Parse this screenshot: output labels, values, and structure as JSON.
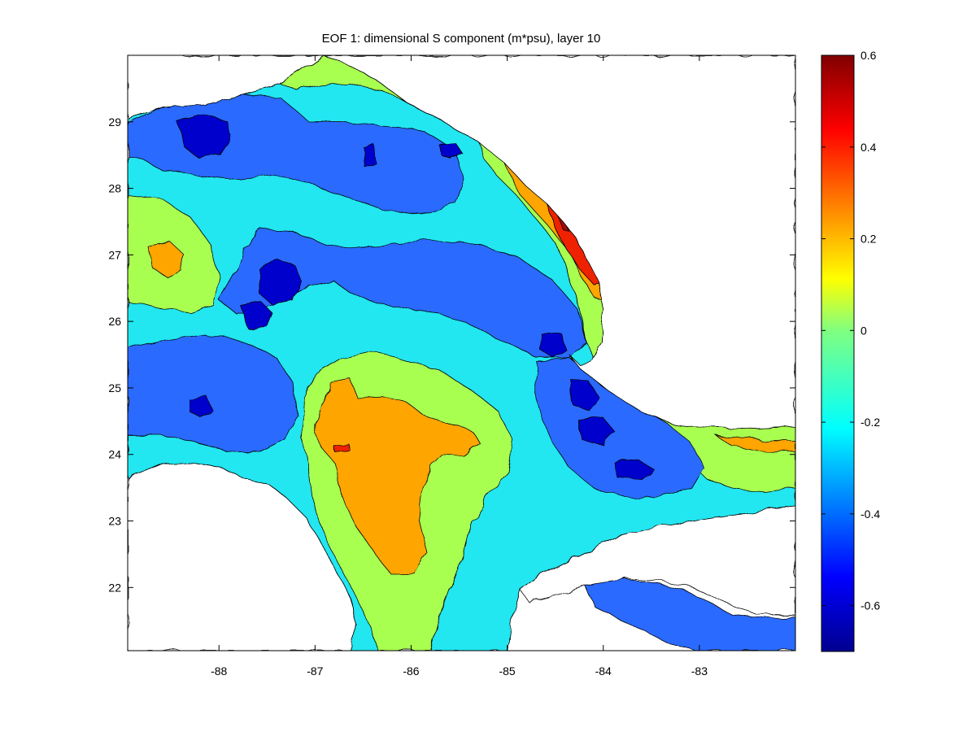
{
  "chart_data": {
    "type": "heatmap",
    "title": "EOF 1: dimensional S component (m*psu), layer 10",
    "xlabel": "",
    "ylabel": "",
    "x_ticks": [
      -88,
      -87,
      -86,
      -85,
      -84,
      -83
    ],
    "y_ticks": [
      22,
      23,
      24,
      25,
      26,
      27,
      28,
      29
    ],
    "xlim": [
      -88.95,
      -82.0
    ],
    "ylim": [
      21.05,
      30.0
    ],
    "colorbar": {
      "ticks": [
        -0.6,
        -0.4,
        -0.2,
        0,
        0.2,
        0.4,
        0.6
      ],
      "tick_labels": [
        "-0.6",
        "-0.4",
        "-0.2",
        "0",
        "0.2",
        "0.4",
        "0.6"
      ],
      "clim": [
        -0.7,
        0.6
      ],
      "colormap": "jet"
    },
    "contour_levels": [
      -0.6,
      -0.5,
      -0.4,
      -0.3,
      -0.2,
      -0.1,
      0,
      0.1,
      0.2,
      0.3,
      0.4,
      0.5
    ],
    "grid": false,
    "legend": "colorbar-right"
  }
}
